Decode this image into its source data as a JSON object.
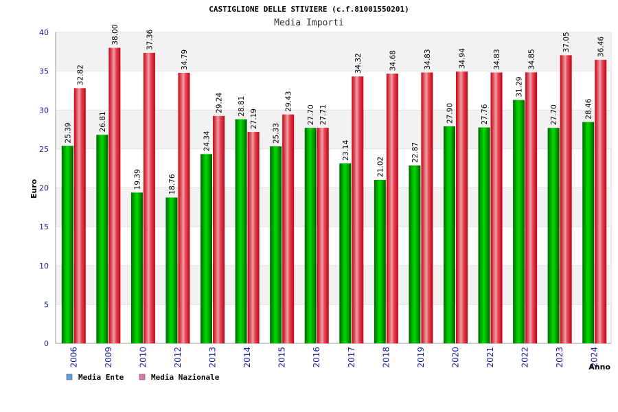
{
  "chart_data": {
    "type": "bar",
    "title": "CASTIGLIONE DELLE STIVIERE (c.f.81001550201)",
    "subtitle": "Media Importi",
    "xlabel": "Anno",
    "ylabel": "Euro",
    "ylim": [
      0,
      40
    ],
    "yticks": [
      "0",
      "5",
      "10",
      "15",
      "20",
      "25",
      "30",
      "35",
      "40"
    ],
    "grid": true,
    "legend_position": "bottom-left",
    "categories": [
      "2006",
      "2009",
      "2010",
      "2012",
      "2013",
      "2014",
      "2015",
      "2016",
      "2017",
      "2018",
      "2019",
      "2020",
      "2021",
      "2022",
      "2023",
      "2024"
    ],
    "series": [
      {
        "name": "Media Ente",
        "color": "#00b000",
        "legend_color": "#5f9fe8",
        "values": [
          25.39,
          26.81,
          19.39,
          18.76,
          24.34,
          28.81,
          25.33,
          27.7,
          23.14,
          21.02,
          22.87,
          27.9,
          27.76,
          31.29,
          27.7,
          28.46
        ],
        "labels": [
          "25.39",
          "26.81",
          "19.39",
          "18.76",
          "24.34",
          "28.81",
          "25.33",
          "27.70",
          "23.14",
          "21.02",
          "22.87",
          "27.90",
          "27.76",
          "31.29",
          "27.70",
          "28.46"
        ]
      },
      {
        "name": "Media Nazionale",
        "color": "#e01020",
        "legend_color": "#e07aa8",
        "values": [
          32.82,
          38.0,
          37.36,
          34.79,
          29.24,
          27.19,
          29.43,
          27.71,
          34.32,
          34.68,
          34.83,
          34.94,
          34.83,
          34.85,
          37.05,
          36.46
        ],
        "labels": [
          "32.82",
          "38.00",
          "37.36",
          "34.79",
          "29.24",
          "27.19",
          "29.43",
          "27.71",
          "34.32",
          "34.68",
          "34.83",
          "34.94",
          "34.83",
          "34.85",
          "37.05",
          "36.46"
        ]
      }
    ]
  }
}
